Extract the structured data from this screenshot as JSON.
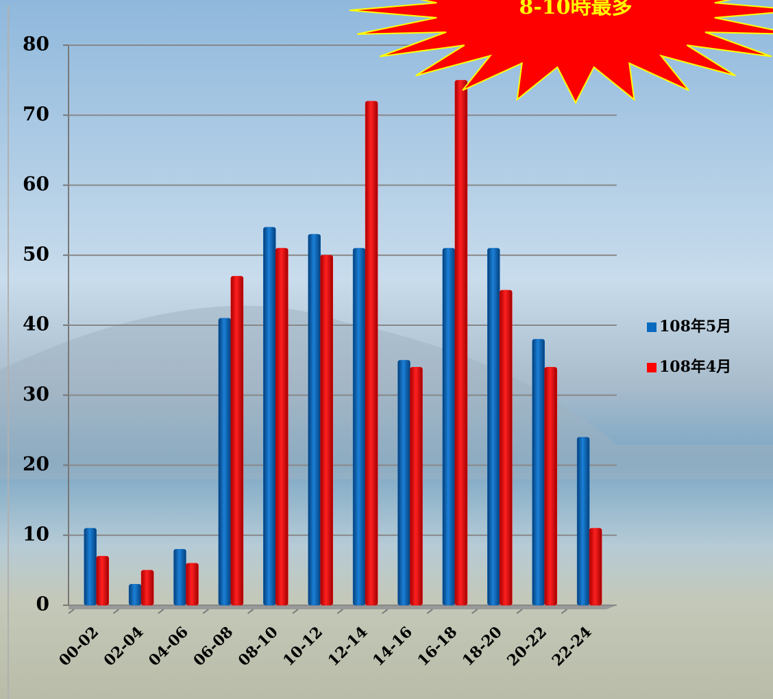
{
  "chart_data": {
    "type": "bar",
    "annotation": "8-10時最多",
    "categories": [
      "00-02",
      "02-04",
      "04-06",
      "06-08",
      "08-10",
      "10-12",
      "12-14",
      "14-16",
      "16-18",
      "18-20",
      "20-22",
      "22-24"
    ],
    "series": [
      {
        "name": "108年5月",
        "color": "#0a6ac0",
        "values": [
          11,
          3,
          8,
          41,
          54,
          53,
          51,
          35,
          51,
          51,
          38,
          24
        ]
      },
      {
        "name": "108年4月",
        "color": "#ff0000",
        "values": [
          7,
          5,
          6,
          47,
          51,
          50,
          72,
          34,
          75,
          45,
          34,
          11
        ]
      }
    ],
    "ylim": [
      0,
      80
    ],
    "yticks": [
      0,
      10,
      20,
      30,
      40,
      50,
      60,
      70,
      80
    ],
    "grid": true,
    "legend": "right"
  }
}
